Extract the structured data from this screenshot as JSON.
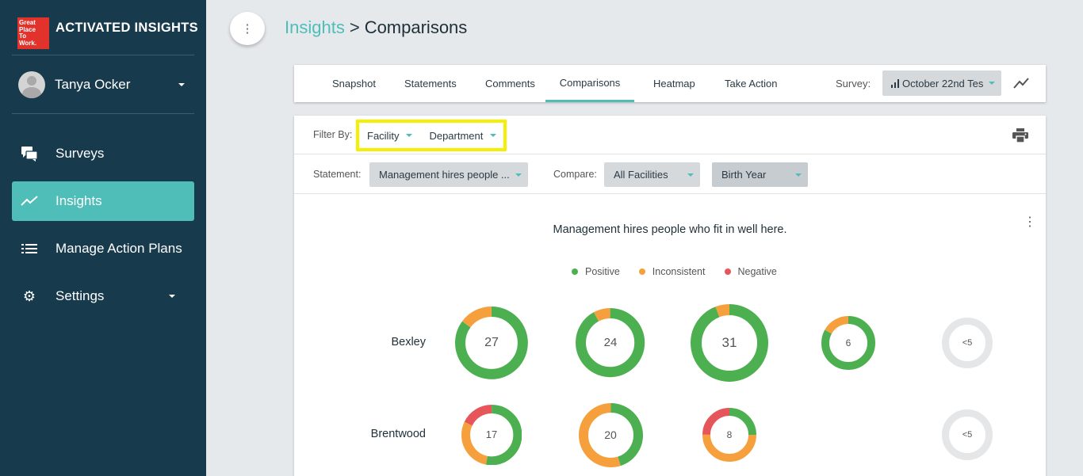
{
  "brand": {
    "logo_lines": [
      "Great",
      "Place",
      "To",
      "Work."
    ],
    "name": "ACTIVATED INSIGHTS"
  },
  "user": {
    "name": "Tanya Ocker"
  },
  "sidebar": {
    "items": [
      {
        "label": "Surveys",
        "icon": "chat-bubbles-icon",
        "active": false
      },
      {
        "label": "Insights",
        "icon": "trend-line-icon",
        "active": true
      },
      {
        "label": "Manage Action Plans",
        "icon": "list-icon",
        "active": false
      },
      {
        "label": "Settings",
        "icon": "gear-icon",
        "active": false
      }
    ]
  },
  "breadcrumb": {
    "parent": "Insights",
    "separator": ">",
    "current": "Comparisons"
  },
  "tabs": [
    {
      "label": "Snapshot",
      "active": false
    },
    {
      "label": "Statements",
      "active": false
    },
    {
      "label": "Comments",
      "active": false
    },
    {
      "label": "Comparisons",
      "active": true
    },
    {
      "label": "Heatmap",
      "active": false
    },
    {
      "label": "Take Action",
      "active": false
    }
  ],
  "survey": {
    "label": "Survey:",
    "value": "October 22nd Tes"
  },
  "filters": {
    "label": "Filter By:",
    "items": [
      "Facility",
      "Department"
    ]
  },
  "statement": {
    "label": "Statement:",
    "value": "Management hires people ..."
  },
  "compare": {
    "label": "Compare:",
    "value": "All Facilities",
    "second_value": "Birth Year"
  },
  "colors": {
    "positive": "#4caf50",
    "inconsistent": "#f5a03c",
    "negative": "#e5555a",
    "empty": "#e4e6e8",
    "accent": "#4fbdb8"
  },
  "chart_data": {
    "type": "donut-grid",
    "title": "Management hires people who fit in well here.",
    "legend": [
      "Positive",
      "Inconsistent",
      "Negative"
    ],
    "rows": [
      {
        "name": "Bexley",
        "cells": [
          {
            "label": "27",
            "positive": 0.85,
            "inconsistent": 0.15,
            "negative": 0
          },
          {
            "label": "24",
            "positive": 0.92,
            "inconsistent": 0.08,
            "negative": 0
          },
          {
            "label": "31",
            "positive": 0.94,
            "inconsistent": 0.06,
            "negative": 0
          },
          {
            "label": "6",
            "positive": 0.83,
            "inconsistent": 0.17,
            "negative": 0
          },
          {
            "label": "<5",
            "positive": 0,
            "inconsistent": 0,
            "negative": 0
          }
        ]
      },
      {
        "name": "Brentwood",
        "cells": [
          {
            "label": "17",
            "positive": 0.53,
            "inconsistent": 0.29,
            "negative": 0.18
          },
          {
            "label": "20",
            "positive": 0.45,
            "inconsistent": 0.55,
            "negative": 0
          },
          {
            "label": "8",
            "positive": 0.25,
            "inconsistent": 0.5,
            "negative": 0.25
          },
          null,
          {
            "label": "<5",
            "positive": 0,
            "inconsistent": 0,
            "negative": 0
          }
        ]
      }
    ]
  }
}
